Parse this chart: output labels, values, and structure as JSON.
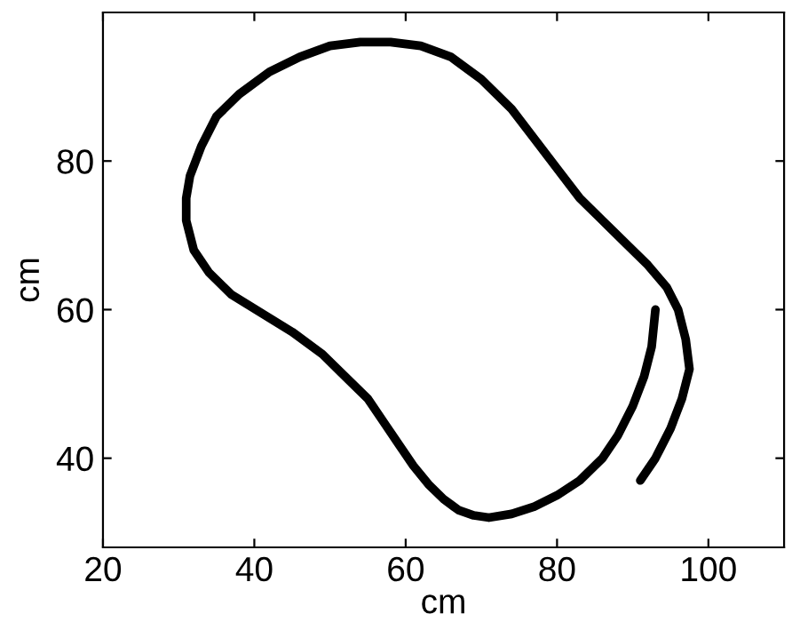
{
  "chart_data": {
    "type": "line",
    "xlabel": "cm",
    "ylabel": "cm",
    "xlim": [
      20,
      110
    ],
    "ylim": [
      28,
      100
    ],
    "xticks": [
      20,
      40,
      60,
      80,
      100
    ],
    "yticks": [
      40,
      60,
      80
    ],
    "grid": false,
    "legend": false,
    "marker": "none",
    "line_style": "solid",
    "series": [
      {
        "color": "#000000",
        "x": [
          91,
          93,
          95,
          96.5,
          97.5,
          97,
          96,
          94.5,
          92,
          89,
          86,
          83,
          80,
          77,
          74,
          70,
          66,
          62,
          58,
          54,
          50,
          46,
          42,
          38,
          35,
          33,
          31.5,
          31,
          31,
          32,
          34,
          37,
          41,
          45,
          49,
          52,
          55,
          57,
          59,
          61,
          63,
          65,
          67,
          69,
          71,
          74,
          77,
          80,
          83,
          86,
          88,
          90,
          91.5,
          92.5,
          93
        ],
        "values": [
          37,
          40,
          44,
          48,
          52,
          56,
          60,
          63,
          66,
          69,
          72,
          75,
          79,
          83,
          87,
          91,
          94,
          95.5,
          96,
          96,
          95.5,
          94,
          92,
          89,
          86,
          82,
          78,
          75,
          72,
          68,
          65,
          62,
          59.5,
          57,
          54,
          51,
          48,
          45,
          42,
          39,
          36.5,
          34.5,
          33,
          32.3,
          32,
          32.5,
          33.5,
          35,
          37,
          40,
          43,
          47,
          51,
          55,
          60
        ]
      }
    ]
  }
}
